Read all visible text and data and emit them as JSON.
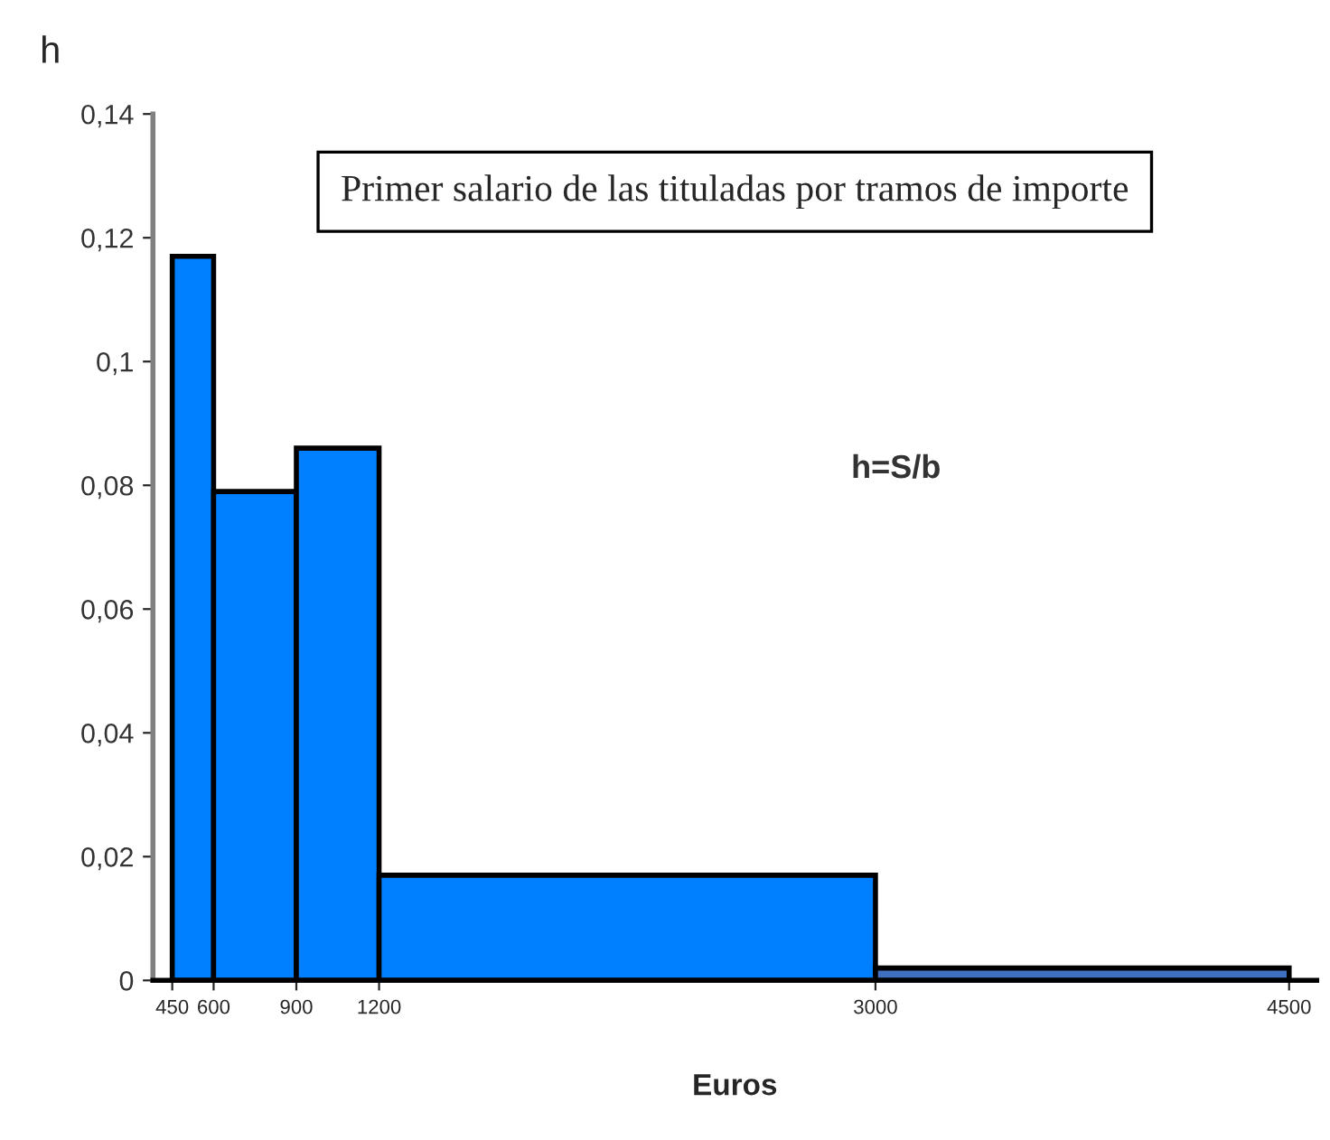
{
  "chart_data": {
    "type": "histogram",
    "title": "Primer salario de las tituladas por tramos de importe",
    "xlabel": "Euros",
    "ylabel": "h",
    "annotations": [
      "h=S/b"
    ],
    "bins": [
      450,
      600,
      900,
      1200,
      3000,
      4500
    ],
    "values": [
      0.117,
      0.079,
      0.086,
      0.017,
      0.002
    ],
    "colors": [
      "#0080ff",
      "#0080ff",
      "#0080ff",
      "#0080ff",
      "#3f6fbf"
    ],
    "xlim": [
      380,
      4600
    ],
    "xticks": [
      450,
      600,
      900,
      1200,
      3000,
      4500
    ],
    "ylim": [
      0,
      0.14
    ],
    "yticks": [
      {
        "value": 0,
        "label": "0"
      },
      {
        "value": 0.02,
        "label": "0,02"
      },
      {
        "value": 0.04,
        "label": "0,04"
      },
      {
        "value": 0.06,
        "label": "0,06"
      },
      {
        "value": 0.08,
        "label": "0,08"
      },
      {
        "value": 0.1,
        "label": "0,1"
      },
      {
        "value": 0.12,
        "label": "0,12"
      },
      {
        "value": 0.14,
        "label": "0,14"
      }
    ],
    "grid": false,
    "legend": false
  }
}
